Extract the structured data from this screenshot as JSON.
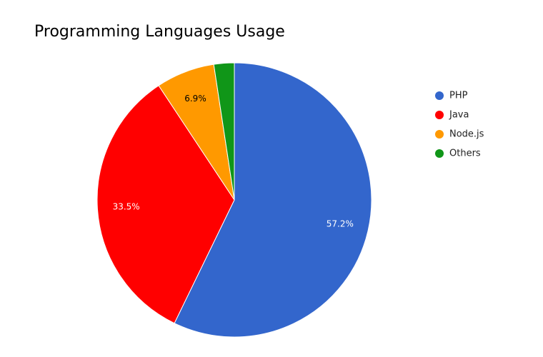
{
  "chart_data": {
    "type": "pie",
    "title": "Programming Languages Usage",
    "categories": [
      "PHP",
      "Java",
      "Node.js",
      "Others"
    ],
    "values": [
      57.2,
      33.5,
      6.9,
      2.4
    ],
    "value_labels": [
      "57.2%",
      "33.5%",
      "6.9%",
      null
    ],
    "colors": [
      "#3366cc",
      "#ff0000",
      "#ff9900",
      "#109618"
    ],
    "legend": "right"
  }
}
